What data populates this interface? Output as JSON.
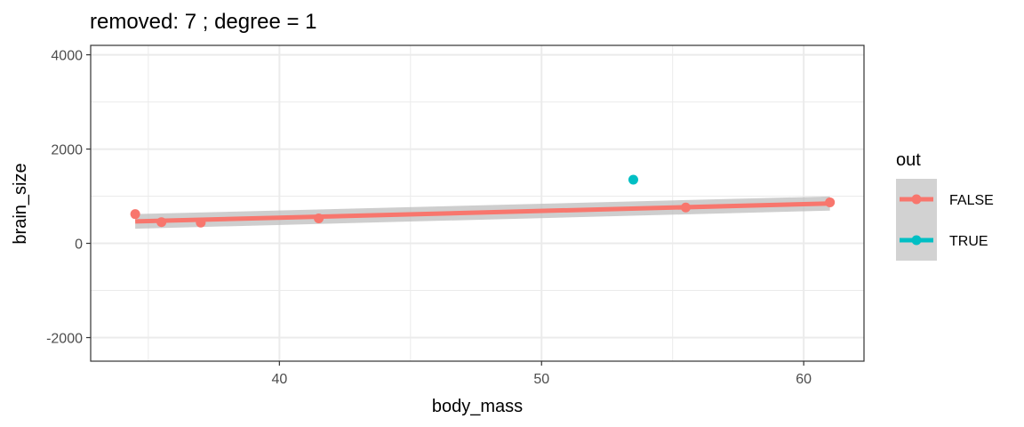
{
  "chart_data": {
    "type": "scatter",
    "title": "removed: 7  ;  degree = 1",
    "xlabel": "body_mass",
    "ylabel": "brain_size",
    "xlim": [
      32.8,
      62.3
    ],
    "ylim": [
      -2500,
      4200
    ],
    "x_ticks": [
      40,
      50,
      60
    ],
    "x_minor": [
      35,
      45,
      55
    ],
    "y_ticks": [
      -2000,
      0,
      2000,
      4000
    ],
    "y_minor": [
      -1000,
      1000,
      3000
    ],
    "grid": true,
    "legend_title": "out",
    "legend_position": "right",
    "series": [
      {
        "name": "FALSE",
        "color": "#F8766D",
        "x": [
          34.5,
          35.5,
          37.0,
          41.5,
          55.5,
          61.0
        ],
        "y": [
          620,
          450,
          440,
          530,
          760,
          870
        ]
      },
      {
        "name": "TRUE",
        "color": "#00BFC4",
        "x": [
          53.5
        ],
        "y": [
          1350
        ]
      }
    ],
    "fit_line": {
      "degree": 1,
      "color": "#F8766D",
      "band_color": "#BEBEBE",
      "x": [
        34.5,
        61.0
      ],
      "y": [
        465,
        845
      ],
      "band_halfwidth": [
        155,
        150
      ]
    }
  }
}
